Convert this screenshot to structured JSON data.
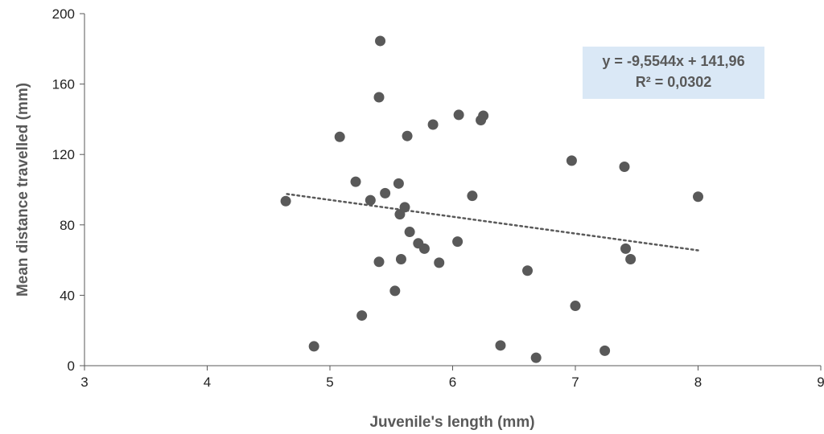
{
  "chart_data": {
    "type": "scatter",
    "title": "",
    "xlabel": "Juvenile's length (mm)",
    "ylabel": "Mean distance travelled (mm)",
    "xlim": [
      3,
      9
    ],
    "ylim": [
      0,
      200
    ],
    "xticks": [
      3,
      4,
      5,
      6,
      7,
      8,
      9
    ],
    "yticks": [
      0,
      40,
      80,
      120,
      160,
      200
    ],
    "grid": false,
    "legend": "none",
    "marker_color": "#595959",
    "trendline": {
      "type": "linear",
      "slope": -9.5544,
      "intercept": 141.96,
      "x_range": [
        4.65,
        8.0
      ],
      "style": "dotted",
      "color": "#595959",
      "equation_label": "y = -9,5544x + 141,96",
      "r2_label": "R² = 0,0302",
      "label_box_color": "#dae8f6",
      "label_position": "top-right"
    },
    "points": [
      {
        "x": 4.64,
        "y": 93.5
      },
      {
        "x": 4.87,
        "y": 11
      },
      {
        "x": 5.08,
        "y": 130
      },
      {
        "x": 5.21,
        "y": 104.5
      },
      {
        "x": 5.26,
        "y": 28.5
      },
      {
        "x": 5.33,
        "y": 94
      },
      {
        "x": 5.4,
        "y": 152.5
      },
      {
        "x": 5.4,
        "y": 59
      },
      {
        "x": 5.41,
        "y": 184.5
      },
      {
        "x": 5.45,
        "y": 98
      },
      {
        "x": 5.53,
        "y": 42.5
      },
      {
        "x": 5.56,
        "y": 103.5
      },
      {
        "x": 5.57,
        "y": 86
      },
      {
        "x": 5.58,
        "y": 60.5
      },
      {
        "x": 5.61,
        "y": 90
      },
      {
        "x": 5.63,
        "y": 130.5
      },
      {
        "x": 5.65,
        "y": 76
      },
      {
        "x": 5.72,
        "y": 69.5
      },
      {
        "x": 5.77,
        "y": 66.5
      },
      {
        "x": 5.84,
        "y": 137
      },
      {
        "x": 5.89,
        "y": 58.5
      },
      {
        "x": 6.04,
        "y": 70.5
      },
      {
        "x": 6.05,
        "y": 142.5
      },
      {
        "x": 6.16,
        "y": 96.5
      },
      {
        "x": 6.23,
        "y": 139.5
      },
      {
        "x": 6.25,
        "y": 142
      },
      {
        "x": 6.39,
        "y": 11.5
      },
      {
        "x": 6.61,
        "y": 54
      },
      {
        "x": 6.68,
        "y": 4.5
      },
      {
        "x": 6.97,
        "y": 116.5
      },
      {
        "x": 7.0,
        "y": 34
      },
      {
        "x": 7.24,
        "y": 8.5
      },
      {
        "x": 7.4,
        "y": 113
      },
      {
        "x": 7.41,
        "y": 66.5
      },
      {
        "x": 7.45,
        "y": 60.5
      },
      {
        "x": 8.0,
        "y": 96
      }
    ]
  }
}
